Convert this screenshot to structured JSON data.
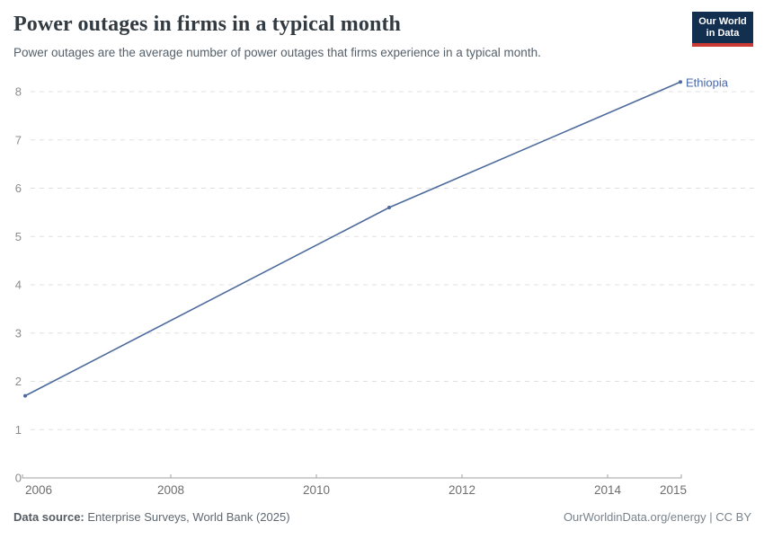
{
  "header": {
    "title": "Power outages in firms in a typical month",
    "subtitle": "Power outages are the average number of power outages that firms experience in a typical month.",
    "logo": {
      "line1": "Our World",
      "line2": "in Data",
      "bg_color": "#132f4f",
      "bar_color": "#cc3b33"
    }
  },
  "chart_data": {
    "type": "line",
    "title": "Power outages in firms in a typical month",
    "xlabel": "",
    "ylabel": "",
    "series": [
      {
        "name": "Ethiopia",
        "color": "#4C6A9C",
        "x": [
          2006,
          2011,
          2015
        ],
        "values": [
          1.7,
          5.6,
          8.2
        ]
      }
    ],
    "entity_label": "Ethiopia",
    "x_ticks": [
      2006,
      2008,
      2010,
      2012,
      2014,
      2015
    ],
    "y_ticks": [
      0,
      1,
      2,
      3,
      4,
      5,
      6,
      7,
      8
    ],
    "xlim": [
      2006,
      2015
    ],
    "ylim": [
      0,
      8
    ],
    "grid": "horizontal-dashed",
    "legend_position": "end-of-line"
  },
  "footer": {
    "source_label": "Data source:",
    "source_text": " Enterprise Surveys, World Bank (2025)",
    "credit": "OurWorldinData.org/energy | CC BY"
  },
  "colors": {
    "line": "#4C6A9C",
    "entity_label": "#4668a8",
    "gridline": "#e0e0e0",
    "axis": "#a0a0a0",
    "y_tick_label": "#8c8c8c",
    "x_tick_label": "#6e6e6e"
  }
}
